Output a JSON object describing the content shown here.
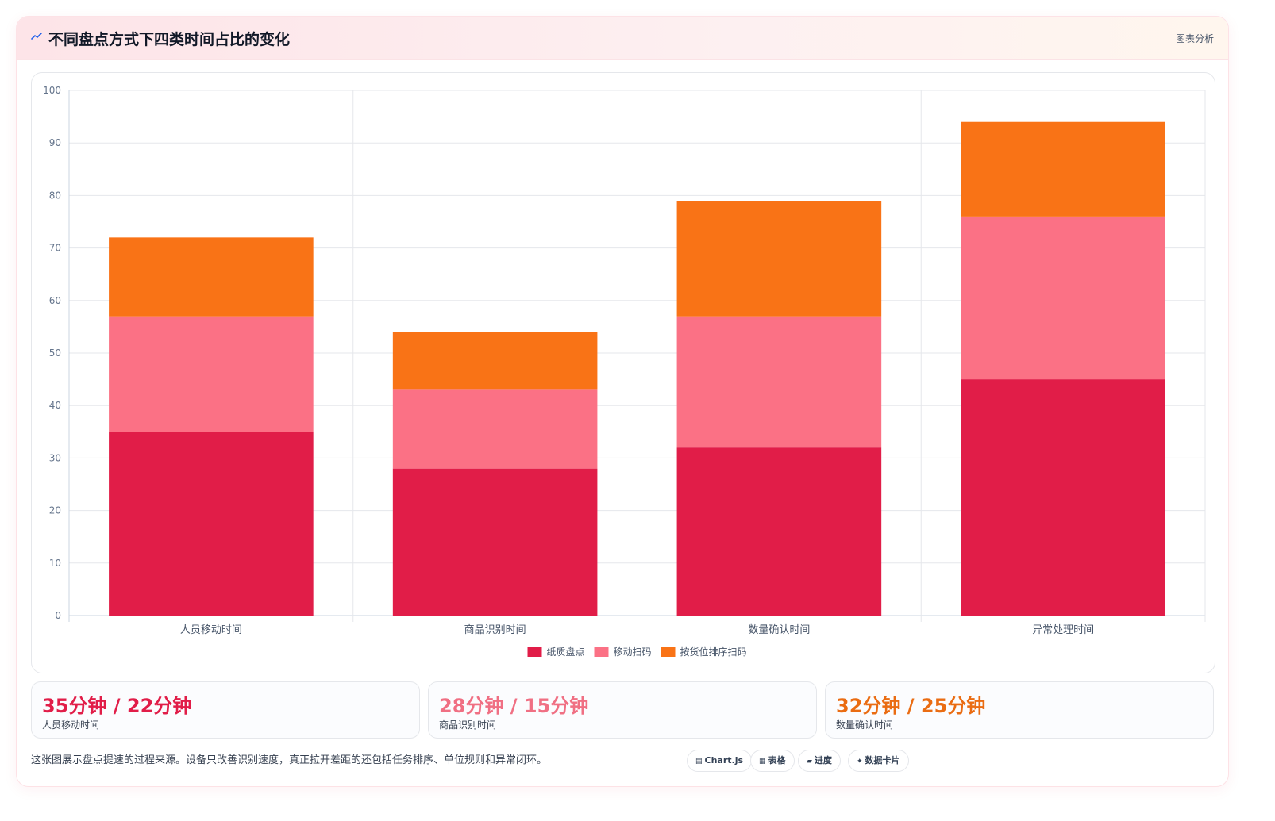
{
  "header": {
    "title": "不同盘点方式下四类时间占比的变化",
    "tag": "图表分析",
    "icon": "trend-line-icon"
  },
  "colors": {
    "paper": "#e11d48",
    "mobile": "#fb7185",
    "sorted": "#f97316"
  },
  "chart_data": {
    "type": "bar",
    "stacked": true,
    "categories": [
      "人员移动时间",
      "商品识别时间",
      "数量确认时间",
      "异常处理时间"
    ],
    "series": [
      {
        "name": "纸质盘点",
        "values": [
          35,
          28,
          32,
          45
        ],
        "color": "#e11d48"
      },
      {
        "name": "移动扫码",
        "values": [
          22,
          15,
          25,
          31
        ],
        "color": "#fb7185"
      },
      {
        "name": "按货位排序扫码",
        "values": [
          15,
          11,
          22,
          18
        ],
        "color": "#f97316"
      }
    ],
    "yticks": [
      "0",
      "10",
      "20",
      "30",
      "40",
      "50",
      "60",
      "70",
      "80",
      "90",
      "100"
    ],
    "ylim": [
      0,
      100
    ],
    "grid": true,
    "legend": "bottom",
    "title": "",
    "xlabel": "",
    "ylabel": ""
  },
  "stats": [
    {
      "value": "35分钟 / 22分钟",
      "label": "人员移动时间",
      "color": "#e11d48"
    },
    {
      "value": "28分钟 / 15分钟",
      "label": "商品识别时间",
      "color": "#f06f83"
    },
    {
      "value": "32分钟 / 25分钟",
      "label": "数量确认时间",
      "color": "#ea6c12"
    }
  ],
  "footer": {
    "note": "这张图展示盘点提速的过程来源。设备只改善识别速度，真正拉开差距的还包括任务排序、单位规则和异常闭环。",
    "pills": [
      {
        "icon": "▤",
        "label": "Chart.js"
      },
      {
        "icon": "▦",
        "label": "表格"
      },
      {
        "icon": "▰",
        "label": "进度"
      },
      {
        "icon": "✦",
        "label": "数据卡片"
      }
    ]
  }
}
